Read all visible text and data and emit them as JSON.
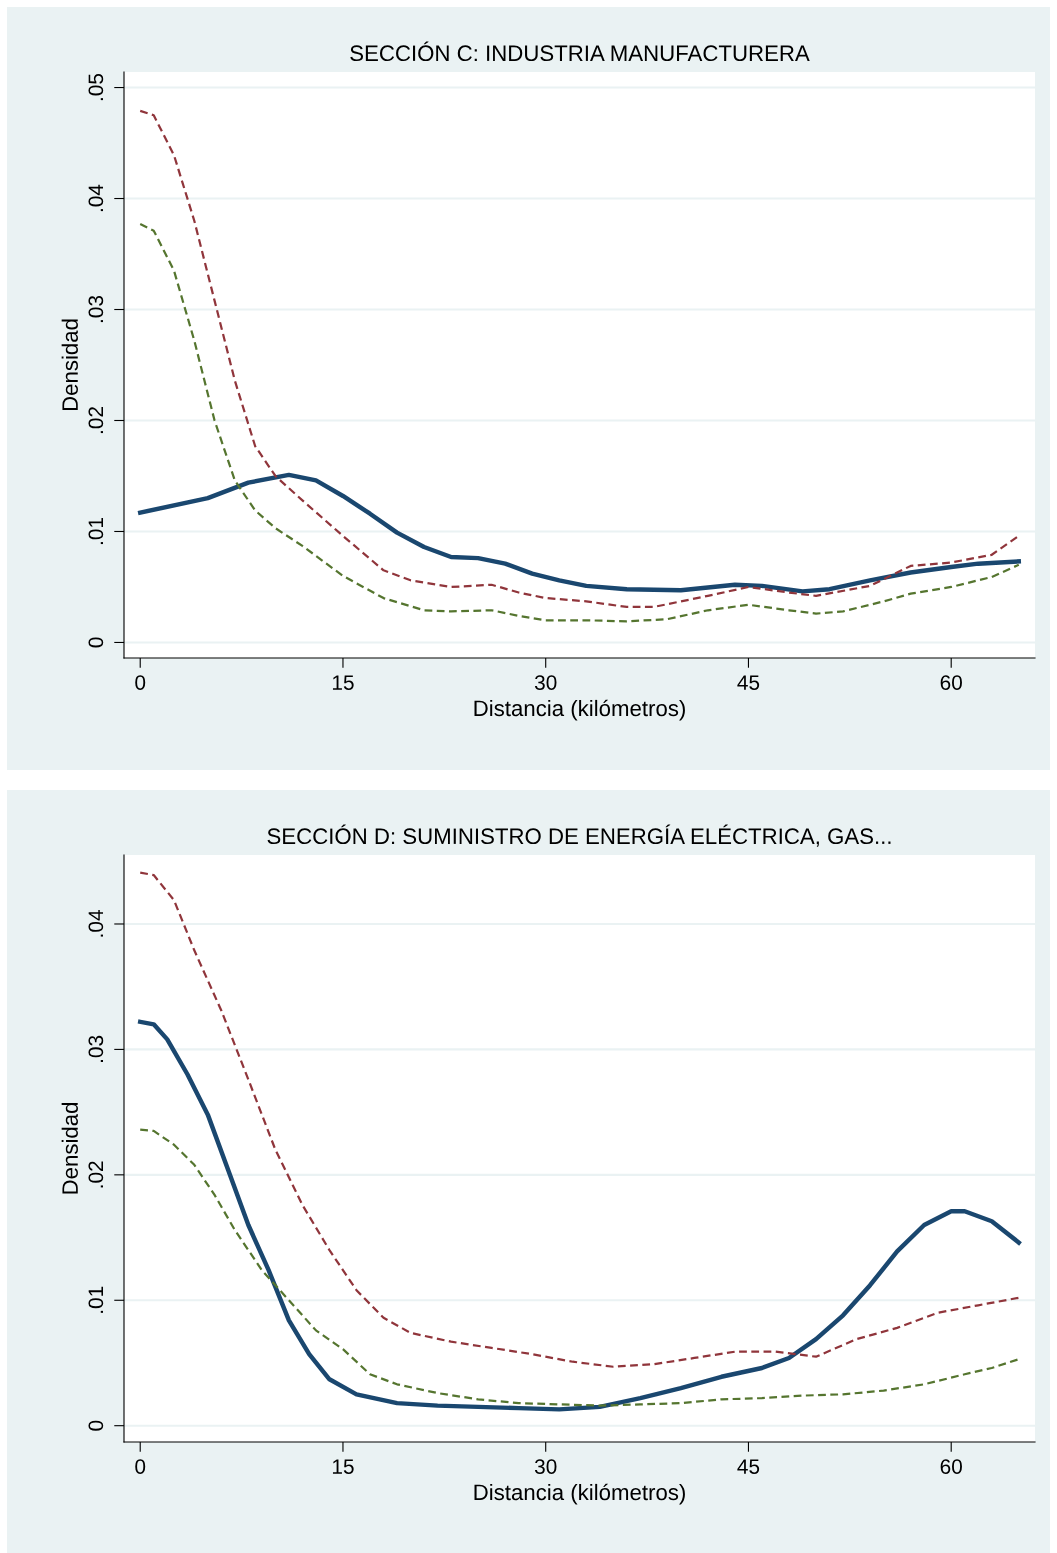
{
  "chart_data": [
    {
      "type": "line",
      "title": "SECCIÓN C: INDUSTRIA MANUFACTURERA",
      "xlabel": "Distancia (kilómetros)",
      "ylabel": "Densidad",
      "xlim": [
        -1.2,
        66.2
      ],
      "xticks": [
        0,
        15,
        30,
        45,
        60
      ],
      "ylim": [
        -0.0014,
        0.0514
      ],
      "yticks": [
        {
          "value": 0,
          "label": "0"
        },
        {
          "value": 0.01,
          "label": ".01"
        },
        {
          "value": 0.02,
          "label": ".02"
        },
        {
          "value": 0.03,
          "label": ".03"
        },
        {
          "value": 0.04,
          "label": ".04"
        },
        {
          "value": 0.05,
          "label": ".05"
        }
      ],
      "grid": "y",
      "legend": false,
      "series": [
        {
          "color": "#1a476f",
          "line_style": "solid",
          "x": [
            0,
            5,
            8,
            11,
            13,
            15,
            17,
            19,
            21,
            23,
            25,
            27,
            29,
            31,
            33,
            36,
            40,
            44,
            46,
            49,
            51,
            54,
            57,
            60,
            62,
            65
          ],
          "values": [
            0.0117,
            0.013,
            0.0144,
            0.0151,
            0.0146,
            0.0132,
            0.0116,
            0.0099,
            0.0086,
            0.0077,
            0.0076,
            0.0071,
            0.0062,
            0.0056,
            0.0051,
            0.0048,
            0.0047,
            0.0052,
            0.0051,
            0.0046,
            0.0048,
            0.0056,
            0.0063,
            0.0068,
            0.0071,
            0.0073
          ]
        },
        {
          "color": "#90353b",
          "line_style": "dashed",
          "x": [
            0,
            1,
            2.5,
            4,
            5.5,
            7,
            8.5,
            10,
            12,
            15,
            18,
            20,
            23,
            26,
            28,
            30,
            33,
            36,
            38,
            42,
            45,
            48,
            50,
            54,
            57,
            60,
            63,
            65
          ],
          "values": [
            0.0479,
            0.0475,
            0.0439,
            0.038,
            0.0308,
            0.0236,
            0.0177,
            0.015,
            0.0128,
            0.0096,
            0.0065,
            0.0056,
            0.005,
            0.0052,
            0.0045,
            0.004,
            0.0037,
            0.0032,
            0.0032,
            0.0042,
            0.005,
            0.0045,
            0.0042,
            0.0051,
            0.0069,
            0.0072,
            0.0079,
            0.0096
          ]
        },
        {
          "color": "#55752f",
          "line_style": "dashed",
          "x": [
            0,
            1,
            2.5,
            4,
            5.5,
            7,
            8.5,
            10,
            12,
            15,
            18,
            21,
            23,
            26,
            28,
            30,
            33,
            36,
            39,
            42,
            45,
            48,
            50,
            52,
            55,
            57,
            60,
            63,
            65
          ],
          "values": [
            0.0377,
            0.0371,
            0.0335,
            0.0272,
            0.02,
            0.0146,
            0.0119,
            0.0103,
            0.0087,
            0.006,
            0.004,
            0.0029,
            0.0028,
            0.0029,
            0.0024,
            0.002,
            0.002,
            0.0019,
            0.0021,
            0.0029,
            0.0034,
            0.0029,
            0.0026,
            0.0028,
            0.0037,
            0.0044,
            0.005,
            0.0059,
            0.007
          ]
        }
      ]
    },
    {
      "type": "line",
      "title": "SECCIÓN D: SUMINISTRO DE ENERGÍA ELÉCTRICA, GAS...",
      "xlabel": "Distancia (kilómetros)",
      "ylabel": "Densidad",
      "xlim": [
        -1.2,
        66.2
      ],
      "xticks": [
        0,
        15,
        30,
        45,
        60
      ],
      "ylim": [
        -0.0013,
        0.0455
      ],
      "yticks": [
        {
          "value": 0,
          "label": "0"
        },
        {
          "value": 0.01,
          "label": ".01"
        },
        {
          "value": 0.02,
          "label": ".02"
        },
        {
          "value": 0.03,
          "label": ".03"
        },
        {
          "value": 0.04,
          "label": ".04"
        }
      ],
      "grid": "y",
      "legend": false,
      "series": [
        {
          "color": "#1a476f",
          "line_style": "solid",
          "x": [
            0,
            1,
            2,
            3.5,
            5,
            6.5,
            8,
            9.5,
            11,
            12.5,
            14,
            16,
            19,
            22,
            25,
            28,
            31,
            34,
            37,
            40,
            43,
            46,
            48,
            50,
            52,
            54,
            56,
            58,
            60,
            61,
            63,
            65
          ],
          "values": [
            0.0322,
            0.032,
            0.0308,
            0.028,
            0.0248,
            0.0204,
            0.016,
            0.0124,
            0.0084,
            0.0057,
            0.0037,
            0.0025,
            0.0018,
            0.0016,
            0.0015,
            0.0014,
            0.0013,
            0.0015,
            0.0022,
            0.003,
            0.0039,
            0.0046,
            0.0054,
            0.0069,
            0.0088,
            0.0112,
            0.0139,
            0.016,
            0.0171,
            0.0171,
            0.0163,
            0.0146
          ]
        },
        {
          "color": "#90353b",
          "line_style": "dashed",
          "x": [
            0,
            1,
            2.5,
            4,
            6,
            8,
            10,
            12,
            14,
            16,
            18,
            20,
            23,
            26,
            29,
            32,
            35,
            38,
            41,
            44,
            47,
            50,
            53,
            56,
            59,
            62,
            65
          ],
          "values": [
            0.0441,
            0.0439,
            0.0419,
            0.0379,
            0.0331,
            0.0276,
            0.022,
            0.0176,
            0.014,
            0.0108,
            0.0086,
            0.0074,
            0.0067,
            0.0062,
            0.0057,
            0.0051,
            0.0047,
            0.0049,
            0.0054,
            0.0059,
            0.0059,
            0.0055,
            0.0069,
            0.0078,
            0.009,
            0.0096,
            0.0102
          ]
        },
        {
          "color": "#55752f",
          "line_style": "dashed",
          "x": [
            0,
            1,
            2.5,
            4,
            5.5,
            7,
            9,
            11,
            13,
            15,
            17,
            19,
            22,
            25,
            28,
            31,
            34,
            37,
            40,
            43,
            46,
            49,
            52,
            55,
            58,
            61,
            63,
            65
          ],
          "values": [
            0.0236,
            0.0235,
            0.0224,
            0.0208,
            0.0184,
            0.0156,
            0.0124,
            0.01,
            0.0076,
            0.0061,
            0.0041,
            0.0033,
            0.0026,
            0.0021,
            0.0018,
            0.0017,
            0.0016,
            0.0017,
            0.0018,
            0.0021,
            0.0022,
            0.0024,
            0.0025,
            0.0028,
            0.0033,
            0.0041,
            0.0046,
            0.0053
          ]
        }
      ]
    }
  ]
}
